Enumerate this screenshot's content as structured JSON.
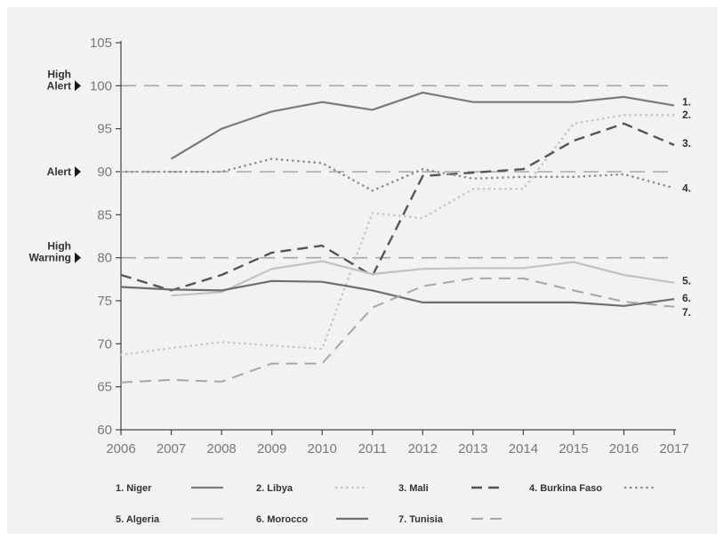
{
  "chart_data": {
    "type": "line",
    "title": "",
    "xlabel": "",
    "ylabel": "",
    "x": [
      2006,
      2007,
      2008,
      2009,
      2010,
      2011,
      2012,
      2013,
      2014,
      2015,
      2016,
      2017
    ],
    "x_tick_labels": [
      "2006",
      "2007",
      "2008",
      "2009",
      "2010",
      "2011",
      "2012",
      "2013",
      "2014",
      "2015",
      "2016",
      "2017"
    ],
    "ylim": [
      60,
      105
    ],
    "y_ticks": [
      60,
      65,
      70,
      75,
      80,
      85,
      90,
      95,
      100,
      105
    ],
    "y_tick_labels": [
      "60",
      "65",
      "70",
      "75",
      "80",
      "85",
      "90",
      "95",
      "100",
      "105"
    ],
    "grid": false,
    "thresholds": [
      {
        "value": 100,
        "label_lines": [
          "High",
          "Alert"
        ]
      },
      {
        "value": 90,
        "label_lines": [
          "Alert"
        ]
      },
      {
        "value": 80,
        "label_lines": [
          "High",
          "Warning"
        ]
      }
    ],
    "series": [
      {
        "name": "1. Niger",
        "end_label": "1.",
        "style": "solid",
        "color": "#7a7a7a",
        "values": [
          null,
          91.5,
          95.0,
          97.0,
          98.1,
          97.2,
          99.2,
          98.1,
          98.1,
          98.1,
          98.7,
          97.7
        ]
      },
      {
        "name": "2. Libya",
        "end_label": "2.",
        "style": "dotted-light",
        "color": "#c4c4c4",
        "values": [
          68.7,
          69.5,
          70.2,
          69.8,
          69.4,
          85.2,
          84.6,
          88.0,
          88.0,
          95.6,
          96.6,
          96.6
        ]
      },
      {
        "name": "3. Mali",
        "end_label": "3.",
        "style": "dashed",
        "color": "#555555",
        "values": [
          78.0,
          76.2,
          78.0,
          80.6,
          81.4,
          77.9,
          89.5,
          89.9,
          90.3,
          93.6,
          95.6,
          93.1
        ]
      },
      {
        "name": "4. Burkina Faso",
        "end_label": "4.",
        "style": "dotted-dark",
        "color": "#8a8a8a",
        "values": [
          90.0,
          90.0,
          90.0,
          91.5,
          91.0,
          87.8,
          90.3,
          89.2,
          89.4,
          89.4,
          89.7,
          88.1
        ]
      },
      {
        "name": "5. Algeria",
        "end_label": "5.",
        "style": "solid-light",
        "color": "#c2c2c2",
        "values": [
          null,
          75.6,
          76.0,
          78.7,
          79.6,
          78.1,
          78.7,
          78.8,
          78.8,
          79.5,
          78.0,
          77.1
        ]
      },
      {
        "name": "6. Morocco",
        "end_label": "6.",
        "style": "solid",
        "color": "#6e6e6e",
        "values": [
          76.6,
          76.3,
          76.2,
          77.3,
          77.2,
          76.2,
          74.8,
          74.8,
          74.8,
          74.8,
          74.4,
          75.2
        ]
      },
      {
        "name": "7. Tunisia",
        "end_label": "7.",
        "style": "dashed-light",
        "color": "#a6a6a6",
        "values": [
          65.5,
          65.8,
          65.6,
          67.7,
          67.7,
          74.2,
          76.7,
          77.6,
          77.6,
          76.2,
          74.9,
          74.3
        ]
      }
    ],
    "legend": {
      "placement": "bottom",
      "rows": [
        [
          0,
          1,
          2,
          3
        ],
        [
          4,
          5,
          6
        ]
      ]
    }
  }
}
